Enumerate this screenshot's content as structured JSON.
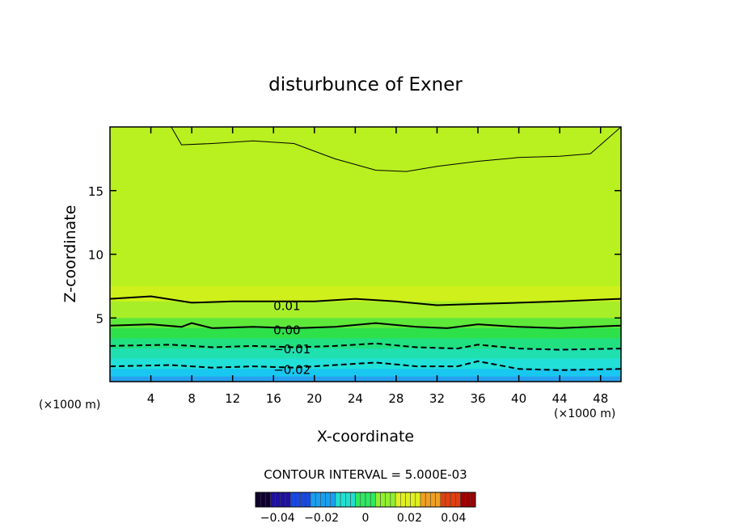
{
  "chart_data": {
    "type": "contour",
    "title": "disturbunce of Exner",
    "xlabel": "X-coordinate",
    "ylabel": "Z-coordinate",
    "x_unit_left": "(×1000 m)",
    "x_unit_right": "(×1000 m)",
    "xlim": [
      0,
      50
    ],
    "ylim": [
      0,
      20
    ],
    "x_ticks": [
      4,
      8,
      12,
      16,
      20,
      24,
      28,
      32,
      36,
      40,
      44,
      48
    ],
    "y_ticks": [
      5,
      10,
      15
    ],
    "contour_interval_text": "CONTOUR INTERVAL = 5.000E-03",
    "contour_labels": [
      {
        "text": "0.01",
        "value": 0.01,
        "x": 17.0,
        "z": 6.0
      },
      {
        "text": "0.00",
        "value": 0.0,
        "x": 17.0,
        "z": 4.1
      },
      {
        "text": "−0.01",
        "value": -0.01,
        "x": 17.5,
        "z": 2.6
      },
      {
        "text": "−0.02",
        "value": -0.02,
        "x": 17.5,
        "z": 1.0
      }
    ],
    "colorbar": {
      "ticks": [
        -0.04,
        -0.02,
        0,
        0.02,
        0.04
      ],
      "tick_labels": [
        "−0.04",
        "−0.02",
        "0",
        "0.02",
        "0.04"
      ],
      "range": [
        -0.05,
        0.05
      ]
    },
    "bands": [
      {
        "z_top": 20,
        "color": "#b8f020"
      },
      {
        "z_top": 7.5,
        "color": "#cff01a"
      },
      {
        "z_top": 6.3,
        "color": "#a8ee28"
      },
      {
        "z_top": 5.0,
        "color": "#5ee83a"
      },
      {
        "z_top": 4.2,
        "color": "#2ee04a"
      },
      {
        "z_top": 3.4,
        "color": "#20e080"
      },
      {
        "z_top": 2.6,
        "color": "#20e0b0"
      },
      {
        "z_top": 1.8,
        "color": "#20e0d8"
      },
      {
        "z_top": 1.0,
        "color": "#18c8f0"
      },
      {
        "z_top": 0.4,
        "color": "#28a0f0"
      }
    ],
    "contours": [
      {
        "value": 0.015,
        "style": "thin-solid",
        "points": [
          [
            6,
            20
          ],
          [
            7,
            18.6
          ],
          [
            10,
            18.7
          ],
          [
            14,
            18.9
          ],
          [
            18,
            18.7
          ],
          [
            22,
            17.5
          ],
          [
            26,
            16.6
          ],
          [
            29,
            16.5
          ],
          [
            32,
            16.9
          ],
          [
            36,
            17.3
          ],
          [
            40,
            17.6
          ],
          [
            44,
            17.7
          ],
          [
            47,
            17.9
          ],
          [
            50,
            20
          ]
        ]
      },
      {
        "value": 0.01,
        "style": "thick-solid",
        "points": [
          [
            0,
            6.5
          ],
          [
            4,
            6.7
          ],
          [
            8,
            6.2
          ],
          [
            12,
            6.3
          ],
          [
            16,
            6.3
          ],
          [
            20,
            6.3
          ],
          [
            24,
            6.5
          ],
          [
            28,
            6.3
          ],
          [
            32,
            6.0
          ],
          [
            36,
            6.1
          ],
          [
            40,
            6.2
          ],
          [
            44,
            6.3
          ],
          [
            50,
            6.5
          ]
        ]
      },
      {
        "value": 0.0,
        "style": "thick-solid",
        "points": [
          [
            0,
            4.4
          ],
          [
            4,
            4.5
          ],
          [
            7,
            4.3
          ],
          [
            8,
            4.6
          ],
          [
            10,
            4.2
          ],
          [
            14,
            4.3
          ],
          [
            18,
            4.2
          ],
          [
            22,
            4.3
          ],
          [
            26,
            4.6
          ],
          [
            30,
            4.3
          ],
          [
            33,
            4.2
          ],
          [
            36,
            4.5
          ],
          [
            40,
            4.3
          ],
          [
            44,
            4.2
          ],
          [
            50,
            4.4
          ]
        ]
      },
      {
        "value": -0.01,
        "style": "thick-dashed",
        "points": [
          [
            0,
            2.8
          ],
          [
            6,
            2.9
          ],
          [
            10,
            2.7
          ],
          [
            14,
            2.8
          ],
          [
            18,
            2.7
          ],
          [
            22,
            2.8
          ],
          [
            26,
            3.0
          ],
          [
            30,
            2.7
          ],
          [
            34,
            2.6
          ],
          [
            36,
            2.9
          ],
          [
            40,
            2.6
          ],
          [
            44,
            2.5
          ],
          [
            50,
            2.6
          ]
        ]
      },
      {
        "value": -0.02,
        "style": "thick-dashed",
        "points": [
          [
            0,
            1.2
          ],
          [
            6,
            1.3
          ],
          [
            10,
            1.1
          ],
          [
            14,
            1.2
          ],
          [
            18,
            1.1
          ],
          [
            22,
            1.3
          ],
          [
            26,
            1.5
          ],
          [
            30,
            1.2
          ],
          [
            34,
            1.2
          ],
          [
            36,
            1.6
          ],
          [
            40,
            1.0
          ],
          [
            44,
            0.9
          ],
          [
            50,
            1.0
          ]
        ]
      }
    ]
  },
  "colors": {
    "frame": "#000000",
    "text": "#000000"
  }
}
